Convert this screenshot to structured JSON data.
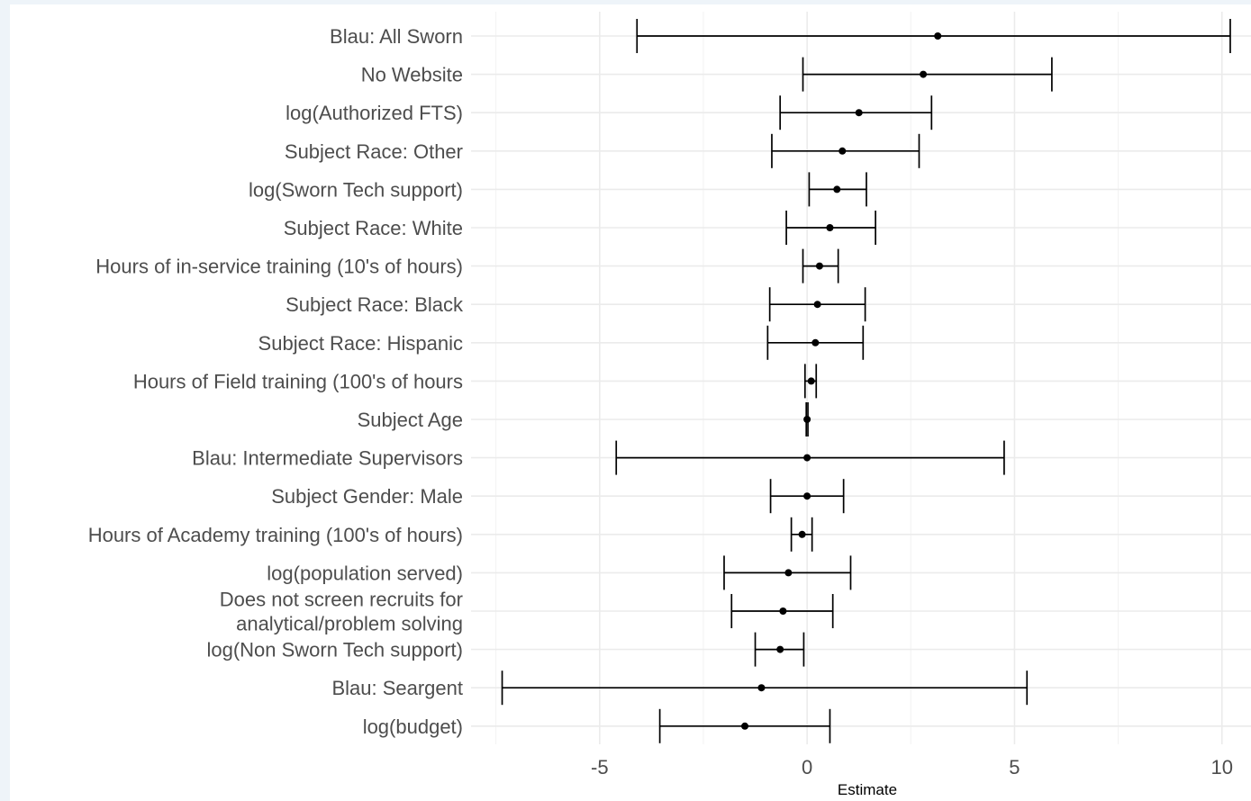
{
  "chart_data": {
    "type": "scatter",
    "subtype": "coefficient-plot-with-error-bars",
    "title": "",
    "xlabel": "Estimate",
    "ylabel": "",
    "xlim": [
      -8.1,
      10.7
    ],
    "xticks": [
      -5,
      0,
      5,
      10
    ],
    "xtick_labels": [
      "-5",
      "0",
      "5",
      "10"
    ],
    "grid": true,
    "legend": "none",
    "colors": {
      "background": "#ffffff",
      "page": "#eef4f9",
      "grid": "#ebebeb",
      "marks": "#000000",
      "labels": "#4d4d4d"
    },
    "terms": [
      {
        "label": [
          "Blau: All Sworn"
        ],
        "estimate": 3.15,
        "low": -4.1,
        "high": 10.2
      },
      {
        "label": [
          "No Website"
        ],
        "estimate": 2.8,
        "low": -0.1,
        "high": 5.9
      },
      {
        "label": [
          "log(Authorized FTS)"
        ],
        "estimate": 1.25,
        "low": -0.65,
        "high": 3.0
      },
      {
        "label": [
          "Subject Race: Other"
        ],
        "estimate": 0.85,
        "low": -0.85,
        "high": 2.7
      },
      {
        "label": [
          "log(Sworn Tech support)"
        ],
        "estimate": 0.72,
        "low": 0.05,
        "high": 1.43
      },
      {
        "label": [
          "Subject Race: White"
        ],
        "estimate": 0.55,
        "low": -0.5,
        "high": 1.65
      },
      {
        "label": [
          "Hours of in-service training (10's of hours)"
        ],
        "estimate": 0.3,
        "low": -0.1,
        "high": 0.75
      },
      {
        "label": [
          "Subject Race: Black"
        ],
        "estimate": 0.25,
        "low": -0.9,
        "high": 1.4
      },
      {
        "label": [
          "Subject Race: Hispanic"
        ],
        "estimate": 0.2,
        "low": -0.95,
        "high": 1.35
      },
      {
        "label": [
          "Hours of Field training (100's of hours"
        ],
        "estimate": 0.1,
        "low": -0.05,
        "high": 0.22
      },
      {
        "label": [
          "Subject Age"
        ],
        "estimate": 0.0,
        "low": -0.02,
        "high": 0.02
      },
      {
        "label": [
          "Blau: Intermediate Supervisors"
        ],
        "estimate": 0.0,
        "low": -4.6,
        "high": 4.75
      },
      {
        "label": [
          "Subject Gender: Male"
        ],
        "estimate": 0.0,
        "low": -0.88,
        "high": 0.88
      },
      {
        "label": [
          "Hours of Academy training (100's of hours)"
        ],
        "estimate": -0.12,
        "low": -0.38,
        "high": 0.12
      },
      {
        "label": [
          "log(population served)"
        ],
        "estimate": -0.45,
        "low": -2.0,
        "high": 1.05
      },
      {
        "label": [
          "Does not screen recruits for",
          "analytical/problem solving"
        ],
        "estimate": -0.58,
        "low": -1.82,
        "high": 0.62
      },
      {
        "label": [
          "log(Non Sworn Tech support)"
        ],
        "estimate": -0.65,
        "low": -1.25,
        "high": -0.08
      },
      {
        "label": [
          "Blau: Seargent"
        ],
        "estimate": -1.1,
        "low": -7.35,
        "high": 5.3
      },
      {
        "label": [
          "log(budget)"
        ],
        "estimate": -1.5,
        "low": -3.55,
        "high": 0.55
      }
    ]
  }
}
